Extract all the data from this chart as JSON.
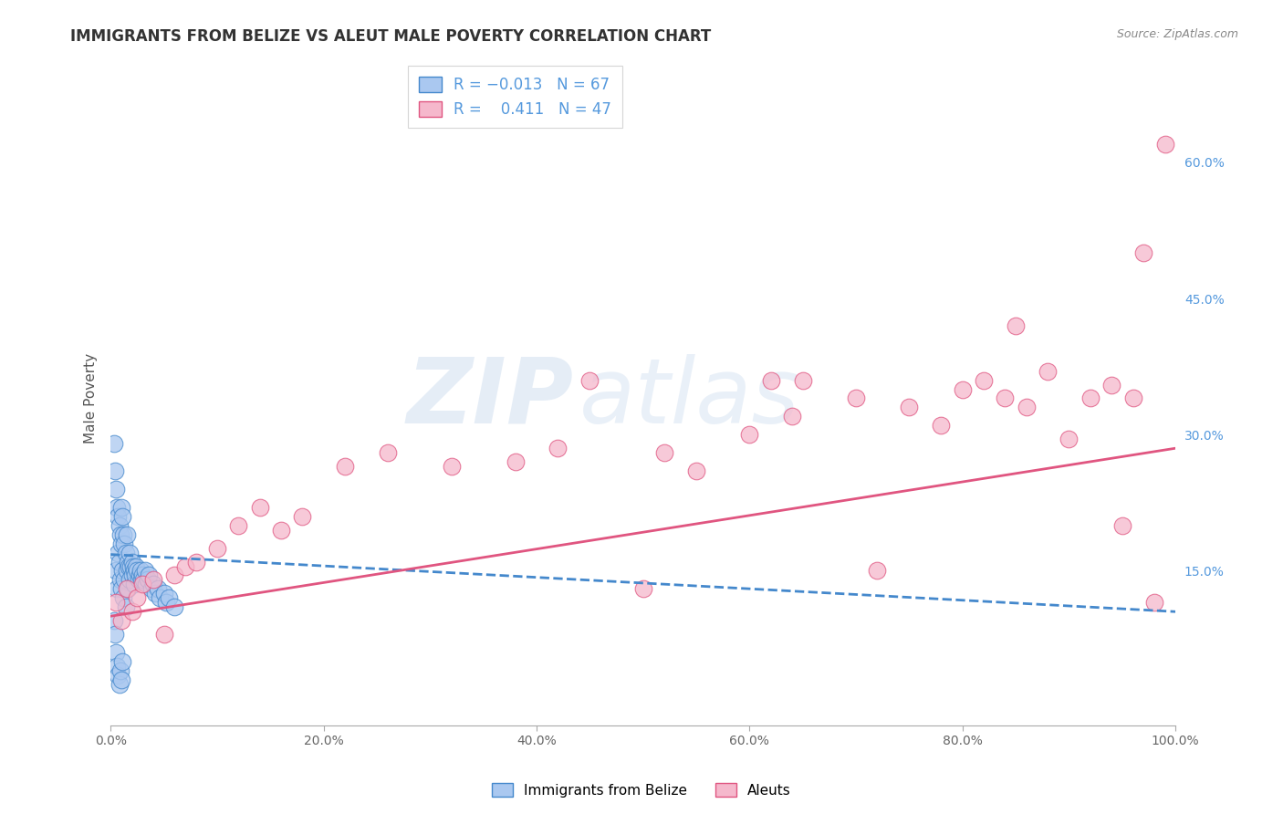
{
  "title": "IMMIGRANTS FROM BELIZE VS ALEUT MALE POVERTY CORRELATION CHART",
  "source": "Source: ZipAtlas.com",
  "ylabel": "Male Poverty",
  "xlim": [
    0,
    1.0
  ],
  "ylim": [
    -0.02,
    0.7
  ],
  "xtick_labels": [
    "0.0%",
    "20.0%",
    "40.0%",
    "60.0%",
    "80.0%",
    "100.0%"
  ],
  "xtick_vals": [
    0.0,
    0.2,
    0.4,
    0.6,
    0.8,
    1.0
  ],
  "ytick_labels": [
    "15.0%",
    "30.0%",
    "45.0%",
    "60.0%"
  ],
  "ytick_vals": [
    0.15,
    0.3,
    0.45,
    0.6
  ],
  "grid_color": "#cccccc",
  "background_color": "#ffffff",
  "watermark_zip": "ZIP",
  "watermark_atlas": "atlas",
  "color_blue": "#aac8f0",
  "color_pink": "#f5b8cc",
  "line_blue": "#4488cc",
  "line_pink": "#e05580",
  "series1_label": "Immigrants from Belize",
  "series2_label": "Aleuts",
  "blue_x": [
    0.003,
    0.004,
    0.005,
    0.005,
    0.006,
    0.006,
    0.007,
    0.007,
    0.008,
    0.008,
    0.009,
    0.009,
    0.01,
    0.01,
    0.01,
    0.011,
    0.011,
    0.012,
    0.012,
    0.013,
    0.013,
    0.014,
    0.014,
    0.015,
    0.015,
    0.016,
    0.016,
    0.017,
    0.018,
    0.018,
    0.019,
    0.02,
    0.02,
    0.021,
    0.022,
    0.022,
    0.023,
    0.024,
    0.025,
    0.026,
    0.027,
    0.028,
    0.029,
    0.03,
    0.031,
    0.032,
    0.033,
    0.035,
    0.036,
    0.038,
    0.04,
    0.042,
    0.044,
    0.046,
    0.05,
    0.052,
    0.055,
    0.06,
    0.003,
    0.004,
    0.005,
    0.006,
    0.007,
    0.008,
    0.009,
    0.01,
    0.011
  ],
  "blue_y": [
    0.29,
    0.26,
    0.24,
    0.15,
    0.22,
    0.13,
    0.21,
    0.17,
    0.2,
    0.16,
    0.19,
    0.14,
    0.22,
    0.18,
    0.13,
    0.21,
    0.15,
    0.19,
    0.12,
    0.18,
    0.14,
    0.17,
    0.11,
    0.19,
    0.15,
    0.16,
    0.13,
    0.155,
    0.17,
    0.14,
    0.155,
    0.16,
    0.145,
    0.155,
    0.15,
    0.135,
    0.145,
    0.155,
    0.15,
    0.14,
    0.145,
    0.15,
    0.14,
    0.145,
    0.14,
    0.15,
    0.135,
    0.14,
    0.145,
    0.13,
    0.135,
    0.125,
    0.13,
    0.12,
    0.125,
    0.115,
    0.12,
    0.11,
    0.095,
    0.08,
    0.06,
    0.045,
    0.035,
    0.025,
    0.04,
    0.03,
    0.05
  ],
  "pink_x": [
    0.005,
    0.01,
    0.015,
    0.02,
    0.025,
    0.03,
    0.04,
    0.05,
    0.06,
    0.07,
    0.08,
    0.1,
    0.12,
    0.14,
    0.16,
    0.18,
    0.22,
    0.26,
    0.32,
    0.38,
    0.42,
    0.45,
    0.5,
    0.52,
    0.55,
    0.6,
    0.62,
    0.64,
    0.65,
    0.7,
    0.72,
    0.75,
    0.78,
    0.8,
    0.82,
    0.84,
    0.85,
    0.86,
    0.88,
    0.9,
    0.92,
    0.94,
    0.95,
    0.96,
    0.97,
    0.98,
    0.99
  ],
  "pink_y": [
    0.115,
    0.095,
    0.13,
    0.105,
    0.12,
    0.135,
    0.14,
    0.08,
    0.145,
    0.155,
    0.16,
    0.175,
    0.2,
    0.22,
    0.195,
    0.21,
    0.265,
    0.28,
    0.265,
    0.27,
    0.285,
    0.36,
    0.13,
    0.28,
    0.26,
    0.3,
    0.36,
    0.32,
    0.36,
    0.34,
    0.15,
    0.33,
    0.31,
    0.35,
    0.36,
    0.34,
    0.42,
    0.33,
    0.37,
    0.295,
    0.34,
    0.355,
    0.2,
    0.34,
    0.5,
    0.115,
    0.62
  ],
  "blue_line_x": [
    0.0,
    1.0
  ],
  "blue_line_y": [
    0.168,
    0.105
  ],
  "pink_line_x": [
    0.0,
    1.0
  ],
  "pink_line_y": [
    0.1,
    0.285
  ]
}
